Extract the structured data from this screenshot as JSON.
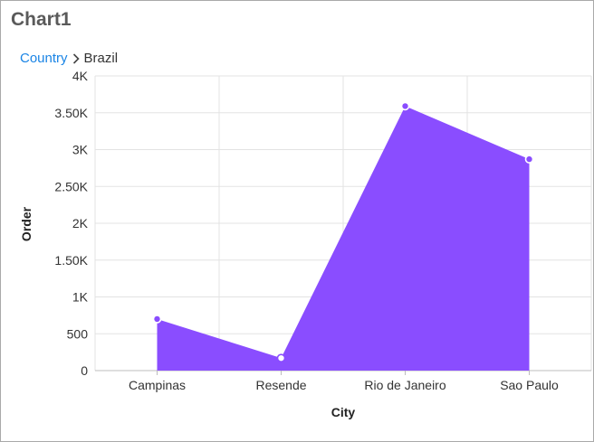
{
  "widget": {
    "title": "Chart1"
  },
  "breadcrumb": {
    "parent": "Country",
    "current": "Brazil"
  },
  "chart_data": {
    "type": "area",
    "categories": [
      "Campinas",
      "Resende",
      "Rio de Janeiro",
      "Sao Paulo"
    ],
    "values": [
      700,
      170,
      3590,
      2870
    ],
    "xlabel": "City",
    "ylabel": "Order",
    "ylim": [
      0,
      4000
    ],
    "yticks": [
      0,
      500,
      1000,
      1500,
      2000,
      2500,
      3000,
      3500,
      4000
    ],
    "yticklabels": [
      "0",
      "500",
      "1K",
      "1.50K",
      "2K",
      "2.50K",
      "3K",
      "3.50K",
      "4K"
    ],
    "grid": true,
    "legend": "none",
    "colors": {
      "area": "#8a4dff",
      "marker": "#8a4dff",
      "grid": "#e3e3e3"
    }
  }
}
